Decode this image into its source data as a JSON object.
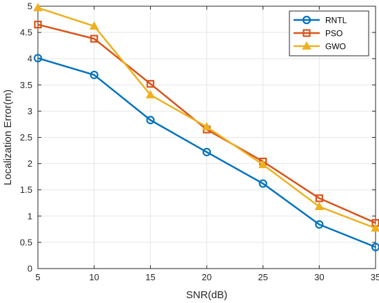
{
  "chart_data": {
    "type": "line",
    "xlabel": "SNR(dB)",
    "ylabel": "Localization Error(m)",
    "xlim": [
      5,
      35
    ],
    "ylim": [
      0,
      5
    ],
    "x": [
      5,
      10,
      15,
      20,
      25,
      30,
      35
    ],
    "xticks": [
      "5",
      "10",
      "15",
      "20",
      "25",
      "30",
      "35"
    ],
    "yticks": [
      "0",
      "0.5",
      "1",
      "1.5",
      "2",
      "2.5",
      "3",
      "3.5",
      "4",
      "4.5",
      "5"
    ],
    "grid": true,
    "legend_position": "top-right",
    "series": [
      {
        "name": "RNTL",
        "values": [
          4.01,
          3.69,
          2.83,
          2.22,
          1.62,
          0.84,
          0.41
        ],
        "color": "#0072BD",
        "marker": "circle"
      },
      {
        "name": "PSO",
        "values": [
          4.65,
          4.38,
          3.52,
          2.65,
          2.04,
          1.34,
          0.87
        ],
        "color": "#D95319",
        "marker": "square"
      },
      {
        "name": "GWO",
        "values": [
          4.97,
          4.62,
          3.31,
          2.7,
          1.98,
          1.18,
          0.77
        ],
        "color": "#EDB120",
        "marker": "triangle"
      }
    ]
  }
}
